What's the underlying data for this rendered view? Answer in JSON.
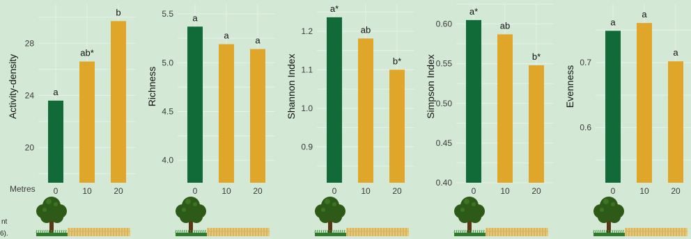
{
  "x_axis_title": "Metres",
  "footnote_fragments": [
    "nt",
    "6)."
  ],
  "colors": {
    "background": "#d3e8d5",
    "grid": "#e8f1e8",
    "bar_edge": "#116b38",
    "bar_interior": "#e0a62a"
  },
  "icons": [
    "tree-icon",
    "grass-strip-icon",
    "crop-strip-icon"
  ],
  "chart_data": [
    {
      "type": "bar",
      "ylabel": "Activity-density",
      "categories": [
        "0",
        "10",
        "20"
      ],
      "values": [
        23.6,
        26.6,
        29.7
      ],
      "letters": [
        "a",
        "ab*",
        "b"
      ],
      "ylim": [
        17.3,
        31.0
      ],
      "yticks": [
        20,
        24,
        28
      ],
      "ytick_labels": [
        "20",
        "24",
        "28"
      ]
    },
    {
      "type": "bar",
      "ylabel": "Richness",
      "categories": [
        "0",
        "10",
        "20"
      ],
      "values": [
        5.37,
        5.19,
        5.14
      ],
      "letters": [
        "a",
        "a",
        "a"
      ],
      "ylim": [
        3.77,
        5.6
      ],
      "yticks": [
        4.0,
        4.5,
        5.0,
        5.5
      ],
      "ytick_labels": [
        "4.0",
        "4.5",
        "5.0",
        "5.5"
      ]
    },
    {
      "type": "bar",
      "ylabel": "Shannon Index",
      "categories": [
        "0",
        "10",
        "20"
      ],
      "values": [
        1.236,
        1.181,
        1.1
      ],
      "letters": [
        "a*",
        "ab",
        "b*"
      ],
      "ylim": [
        0.807,
        1.27
      ],
      "yticks": [
        0.9,
        1.0,
        1.1,
        1.2
      ],
      "ytick_labels": [
        "0.9",
        "1.0",
        "1.1",
        "1.2"
      ]
    },
    {
      "type": "bar",
      "ylabel": "Simpson Index",
      "categories": [
        "0",
        "10",
        "20"
      ],
      "values": [
        0.605,
        0.587,
        0.548
      ],
      "letters": [
        "a*",
        "ab",
        "b*"
      ],
      "ylim": [
        0.4,
        0.625
      ],
      "yticks": [
        0.4,
        0.45,
        0.5,
        0.55,
        0.6
      ],
      "ytick_labels": [
        "0.40",
        "0.45",
        "0.50",
        "0.55",
        "0.60"
      ]
    },
    {
      "type": "bar",
      "ylabel": "Evenness",
      "categories": [
        "0",
        "10",
        "20"
      ],
      "values": [
        0.749,
        0.761,
        0.702
      ],
      "letters": [
        "a",
        "a",
        "a"
      ],
      "ylim": [
        0.515,
        0.79
      ],
      "yticks": [
        0.6,
        0.7
      ],
      "ytick_labels": [
        "0.6",
        "0.7"
      ]
    }
  ]
}
